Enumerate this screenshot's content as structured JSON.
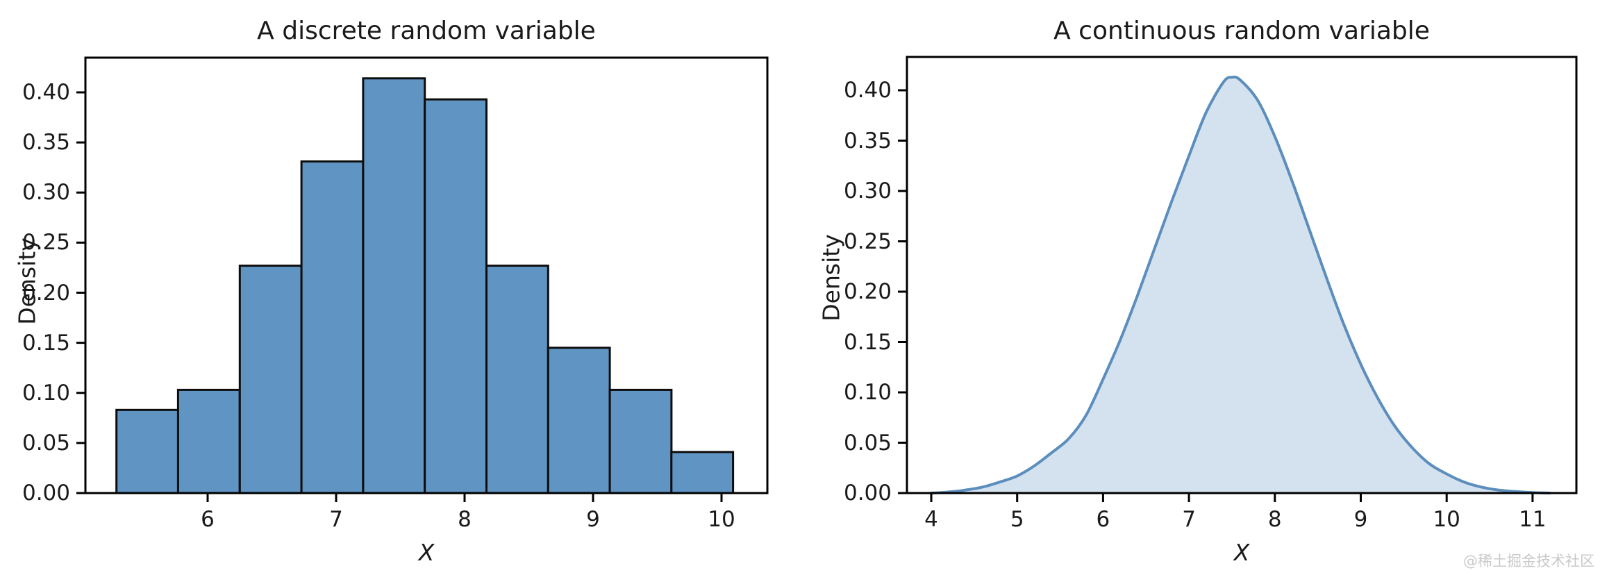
{
  "figure": {
    "watermark": "@稀土掘金技术社区",
    "background": "#ffffff"
  },
  "chart_data": [
    {
      "type": "bar",
      "variant": "histogram",
      "title": "A discrete random variable",
      "xlabel": "X",
      "ylabel": "Density",
      "bin_edges": [
        5.29,
        5.77,
        6.25,
        6.73,
        7.21,
        7.69,
        8.17,
        8.65,
        9.13,
        9.61,
        10.09
      ],
      "densities": [
        0.083,
        0.103,
        0.227,
        0.331,
        0.414,
        0.393,
        0.227,
        0.145,
        0.103,
        0.041
      ],
      "xticks": [
        6,
        7,
        8,
        9,
        10
      ],
      "xtick_labels": [
        "6",
        "7",
        "8",
        "9",
        "10"
      ],
      "yticks": [
        0.0,
        0.05,
        0.1,
        0.15,
        0.2,
        0.25,
        0.3,
        0.35,
        0.4
      ],
      "ytick_labels": [
        "0.00",
        "0.05",
        "0.10",
        "0.15",
        "0.20",
        "0.25",
        "0.30",
        "0.35",
        "0.40"
      ],
      "xlim": [
        5.05,
        10.36
      ],
      "ylim": [
        0,
        0.435
      ],
      "grid": false,
      "bar_fill": "#6095c3",
      "bar_edge": "#0d0d0d"
    },
    {
      "type": "area",
      "variant": "kde",
      "title": "A continuous random variable",
      "xlabel": "X",
      "ylabel": "Density",
      "x": [
        4.0,
        4.2,
        4.4,
        4.6,
        4.8,
        5.0,
        5.2,
        5.4,
        5.6,
        5.8,
        6.0,
        6.2,
        6.4,
        6.6,
        6.8,
        7.0,
        7.2,
        7.4,
        7.5,
        7.6,
        7.8,
        8.0,
        8.2,
        8.4,
        8.6,
        8.8,
        9.0,
        9.2,
        9.4,
        9.6,
        9.8,
        10.0,
        10.2,
        10.4,
        10.6,
        10.8,
        11.0,
        11.2
      ],
      "y": [
        0.0,
        0.001,
        0.003,
        0.006,
        0.011,
        0.017,
        0.027,
        0.04,
        0.054,
        0.077,
        0.113,
        0.152,
        0.196,
        0.243,
        0.29,
        0.335,
        0.378,
        0.408,
        0.413,
        0.41,
        0.39,
        0.354,
        0.31,
        0.262,
        0.214,
        0.168,
        0.128,
        0.094,
        0.066,
        0.045,
        0.029,
        0.019,
        0.011,
        0.006,
        0.003,
        0.0015,
        0.0005,
        0.0
      ],
      "peak": {
        "x": 7.5,
        "density": 0.413
      },
      "xticks": [
        4,
        5,
        6,
        7,
        8,
        9,
        10,
        11
      ],
      "xtick_labels": [
        "4",
        "5",
        "6",
        "7",
        "8",
        "9",
        "10",
        "11"
      ],
      "yticks": [
        0.0,
        0.05,
        0.1,
        0.15,
        0.2,
        0.25,
        0.3,
        0.35,
        0.4
      ],
      "ytick_labels": [
        "0.00",
        "0.05",
        "0.10",
        "0.15",
        "0.20",
        "0.25",
        "0.30",
        "0.35",
        "0.40"
      ],
      "xlim": [
        3.72,
        11.51
      ],
      "ylim": [
        0,
        0.433
      ],
      "grid": false,
      "line_color": "#5b8dbd",
      "fill_color": "#d4e1ef"
    }
  ]
}
